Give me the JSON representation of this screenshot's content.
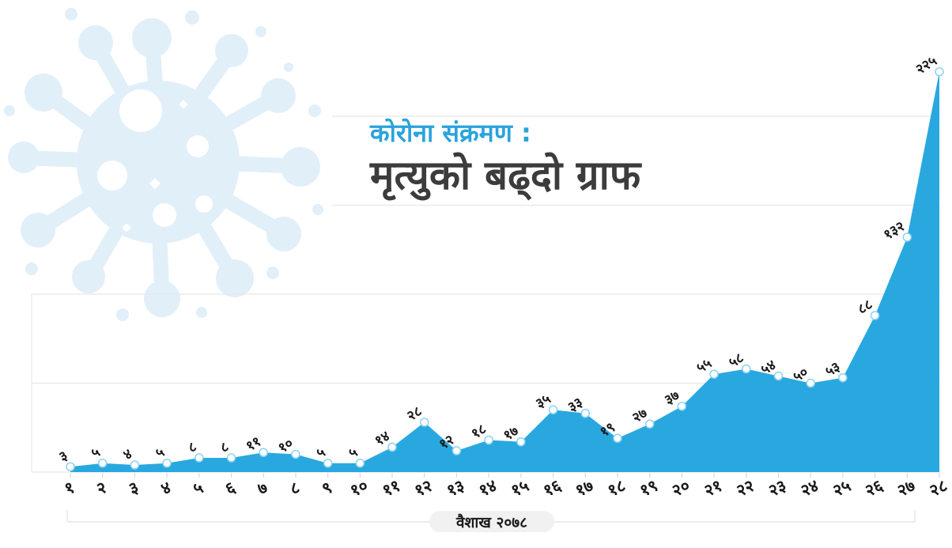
{
  "header": {
    "subtitle": "कोरोना संक्रमण :",
    "title": "मृत्युको बढ्दो ग्राफ"
  },
  "footer": {
    "axis_label": "वैशाख २०७८"
  },
  "colors": {
    "accent_blue": "#29a8e0",
    "title_blue": "#2aa3dc",
    "title_dark": "#3c3c3c",
    "virus_light_blue": "#e1eff9",
    "gridline_gray": "#e8e8e8",
    "tick_gray": "#d9d9d9",
    "bracket_gray": "#ececec",
    "label_dark": "#1a1a1a",
    "pill_bg": "#f1f1f1",
    "dot_fill": "#ffffff",
    "dot_ring": "#8ed2ef"
  },
  "chart_data": {
    "type": "area",
    "title": "मृत्युको बढ्दो ग्राफ",
    "subtitle": "कोरोना संक्रमण :",
    "xlabel": "वैशाख २०७८",
    "ylabel": "",
    "categories": [
      "१",
      "२",
      "३",
      "४",
      "५",
      "६",
      "७",
      "८",
      "९",
      "१०",
      "११",
      "१२",
      "१३",
      "१४",
      "१५",
      "१६",
      "१७",
      "१८",
      "१९",
      "२०",
      "२१",
      "२२",
      "२३",
      "२४",
      "२५",
      "२६",
      "२७",
      "२८"
    ],
    "categories_arabic": [
      1,
      2,
      3,
      4,
      5,
      6,
      7,
      8,
      9,
      10,
      11,
      12,
      13,
      14,
      15,
      16,
      17,
      18,
      19,
      20,
      21,
      22,
      23,
      24,
      25,
      26,
      27,
      28
    ],
    "values": [
      3,
      5,
      4,
      5,
      8,
      8,
      11,
      10,
      5,
      5,
      14,
      28,
      12,
      18,
      17,
      35,
      33,
      19,
      27,
      37,
      55,
      58,
      54,
      50,
      53,
      88,
      132,
      225
    ],
    "value_labels": [
      "३",
      "५",
      "४",
      "५",
      "८",
      "८",
      "११",
      "१०",
      "५",
      "५",
      "१४",
      "२८",
      "१२",
      "१८",
      "१७",
      "३५",
      "३३",
      "१९",
      "२७",
      "३७",
      "५५",
      "५८",
      "५४",
      "५०",
      "५३",
      "८८",
      "१३२",
      "२२५"
    ],
    "ylim": [
      0,
      225
    ],
    "gridline_values": [
      50,
      100,
      150,
      200
    ],
    "grid": "horizontal-only",
    "legend": "none",
    "marker": "white-circle",
    "labels_rotated_degrees": -32
  }
}
